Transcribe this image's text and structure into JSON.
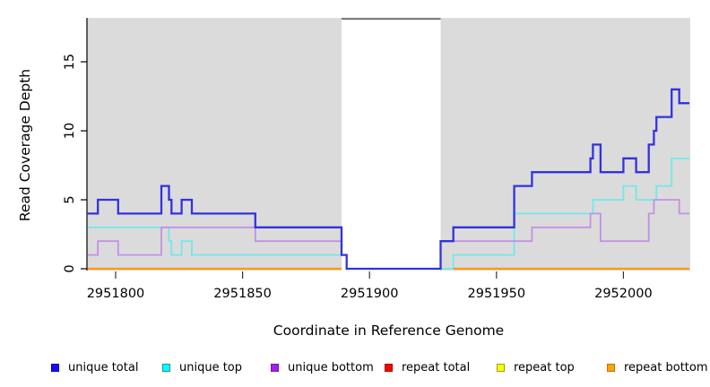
{
  "chart_data": {
    "type": "line",
    "subtype": "step-coverage",
    "title": "",
    "xlabel": "Coordinate in Reference Genome",
    "ylabel": "Read Coverage Depth",
    "x_ticks": [
      2951800,
      2951850,
      2951900,
      2951950,
      2952000
    ],
    "x_tick_labels": [
      "2951800",
      "2951850",
      "2951900",
      "2951950",
      "2952000"
    ],
    "y_ticks": [
      0,
      5,
      10,
      15
    ],
    "y_tick_labels": [
      "0",
      "5",
      "10",
      "15"
    ],
    "xlim": [
      2951789,
      2952026
    ],
    "ylim": [
      0,
      18.3
    ],
    "grid": false,
    "panel_color": "#dbdbdb",
    "gap_region": {
      "start": 2951889,
      "end": 2951928,
      "cap_color": "#7e7e7e"
    },
    "legend_position": "bottom",
    "series": [
      {
        "name": "repeat total",
        "line_color": "#cc1414",
        "segments": [
          [
            2951789,
            2951889,
            0
          ],
          [
            2951933,
            2952026,
            0
          ]
        ]
      },
      {
        "name": "repeat top",
        "line_color": "#f5e83a",
        "segments": [
          [
            2951789,
            2951889,
            0
          ],
          [
            2951933,
            2952026,
            0
          ]
        ]
      },
      {
        "name": "unique top",
        "line_color": "#72e8e8",
        "segments": [
          [
            2951789,
            2951821,
            3
          ],
          [
            2951821,
            2951822,
            2
          ],
          [
            2951822,
            2951826,
            1
          ],
          [
            2951826,
            2951830,
            2
          ],
          [
            2951830,
            2951891,
            1
          ],
          [
            2951928,
            2951933,
            0
          ],
          [
            2951933,
            2951957,
            1
          ],
          [
            2951957,
            2951988,
            4
          ],
          [
            2951988,
            2952000,
            5
          ],
          [
            2952000,
            2952005,
            6
          ],
          [
            2952005,
            2952013,
            5
          ],
          [
            2952013,
            2952019,
            6
          ],
          [
            2952019,
            2952026,
            8
          ]
        ]
      },
      {
        "name": "unique bottom",
        "line_color": "#c291e4",
        "segments": [
          [
            2951789,
            2951793,
            1
          ],
          [
            2951793,
            2951801,
            2
          ],
          [
            2951801,
            2951818,
            1
          ],
          [
            2951818,
            2951855,
            3
          ],
          [
            2951855,
            2951889,
            2
          ],
          [
            2951928,
            2951964,
            2
          ],
          [
            2951964,
            2951987,
            3
          ],
          [
            2951987,
            2951991,
            4
          ],
          [
            2951991,
            2952010,
            2
          ],
          [
            2952010,
            2952012,
            4
          ],
          [
            2952012,
            2952022,
            5
          ],
          [
            2952022,
            2952026,
            4
          ]
        ]
      },
      {
        "name": "unique total",
        "line_color": "#3232e2",
        "segments": [
          [
            2951789,
            2951793,
            4
          ],
          [
            2951793,
            2951801,
            5
          ],
          [
            2951801,
            2951818,
            4
          ],
          [
            2951818,
            2951821,
            6
          ],
          [
            2951821,
            2951822,
            5
          ],
          [
            2951822,
            2951826,
            4
          ],
          [
            2951826,
            2951830,
            5
          ],
          [
            2951830,
            2951855,
            4
          ],
          [
            2951855,
            2951889,
            3
          ],
          [
            2951889,
            2951891,
            1
          ],
          [
            2951891,
            2951928,
            0
          ],
          [
            2951928,
            2951933,
            2
          ],
          [
            2951933,
            2951957,
            3
          ],
          [
            2951957,
            2951964,
            6
          ],
          [
            2951964,
            2951987,
            7
          ],
          [
            2951987,
            2951988,
            8
          ],
          [
            2951988,
            2951991,
            9
          ],
          [
            2951991,
            2952000,
            7
          ],
          [
            2952000,
            2952005,
            8
          ],
          [
            2952005,
            2952010,
            7
          ],
          [
            2952010,
            2952012,
            9
          ],
          [
            2952012,
            2952013,
            10
          ],
          [
            2952013,
            2952019,
            11
          ],
          [
            2952019,
            2952022,
            13
          ],
          [
            2952022,
            2952026,
            12
          ]
        ]
      },
      {
        "name": "repeat bottom",
        "line_color": "#ff9814",
        "segments": [
          [
            2951789,
            2951889,
            0
          ],
          [
            2951933,
            2952026,
            0
          ]
        ]
      }
    ],
    "legend": [
      {
        "label": "unique total",
        "fill": "#0f0fff",
        "border": "#0000b4"
      },
      {
        "label": "unique top",
        "fill": "#00ffff",
        "border": "#009a9a"
      },
      {
        "label": "unique bottom",
        "fill": "#a020f0",
        "border": "#7612b4"
      },
      {
        "label": "repeat total",
        "fill": "#ff0000",
        "border": "#a40000"
      },
      {
        "label": "repeat top",
        "fill": "#ffff00",
        "border": "#a0a000"
      },
      {
        "label": "repeat bottom",
        "fill": "#ffa500",
        "border": "#b87400"
      }
    ]
  }
}
